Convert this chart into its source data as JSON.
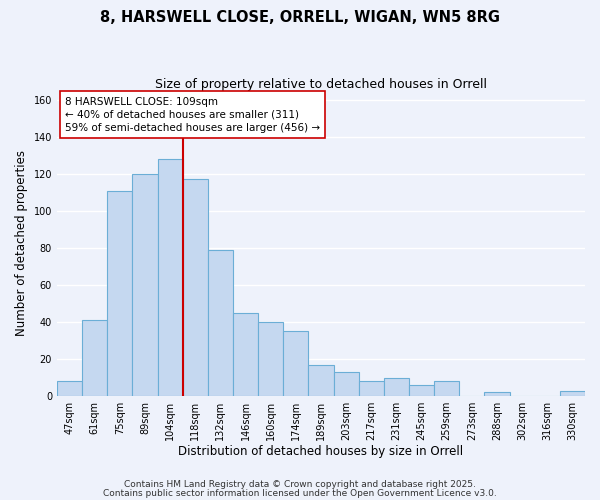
{
  "title": "8, HARSWELL CLOSE, ORRELL, WIGAN, WN5 8RG",
  "subtitle": "Size of property relative to detached houses in Orrell",
  "xlabel": "Distribution of detached houses by size in Orrell",
  "ylabel": "Number of detached properties",
  "bar_labels": [
    "47sqm",
    "61sqm",
    "75sqm",
    "89sqm",
    "104sqm",
    "118sqm",
    "132sqm",
    "146sqm",
    "160sqm",
    "174sqm",
    "189sqm",
    "203sqm",
    "217sqm",
    "231sqm",
    "245sqm",
    "259sqm",
    "273sqm",
    "288sqm",
    "302sqm",
    "316sqm",
    "330sqm"
  ],
  "bar_values": [
    8,
    41,
    111,
    120,
    128,
    117,
    79,
    45,
    40,
    35,
    17,
    13,
    8,
    10,
    6,
    8,
    0,
    2,
    0,
    0,
    3
  ],
  "bar_color": "#c5d8f0",
  "bar_edge_color": "#6baed6",
  "vline_x": 4.5,
  "vline_color": "#cc0000",
  "annotation_line1": "8 HARSWELL CLOSE: 109sqm",
  "annotation_line2": "← 40% of detached houses are smaller (311)",
  "annotation_line3": "59% of semi-detached houses are larger (456) →",
  "ylim": [
    0,
    165
  ],
  "yticks": [
    0,
    20,
    40,
    60,
    80,
    100,
    120,
    140,
    160
  ],
  "footer_line1": "Contains HM Land Registry data © Crown copyright and database right 2025.",
  "footer_line2": "Contains public sector information licensed under the Open Government Licence v3.0.",
  "bg_color": "#eef2fb",
  "grid_color": "#ffffff",
  "title_fontsize": 10.5,
  "subtitle_fontsize": 9,
  "tick_fontsize": 7,
  "ylabel_fontsize": 8.5,
  "xlabel_fontsize": 8.5,
  "annot_fontsize": 7.5,
  "footer_fontsize": 6.5
}
